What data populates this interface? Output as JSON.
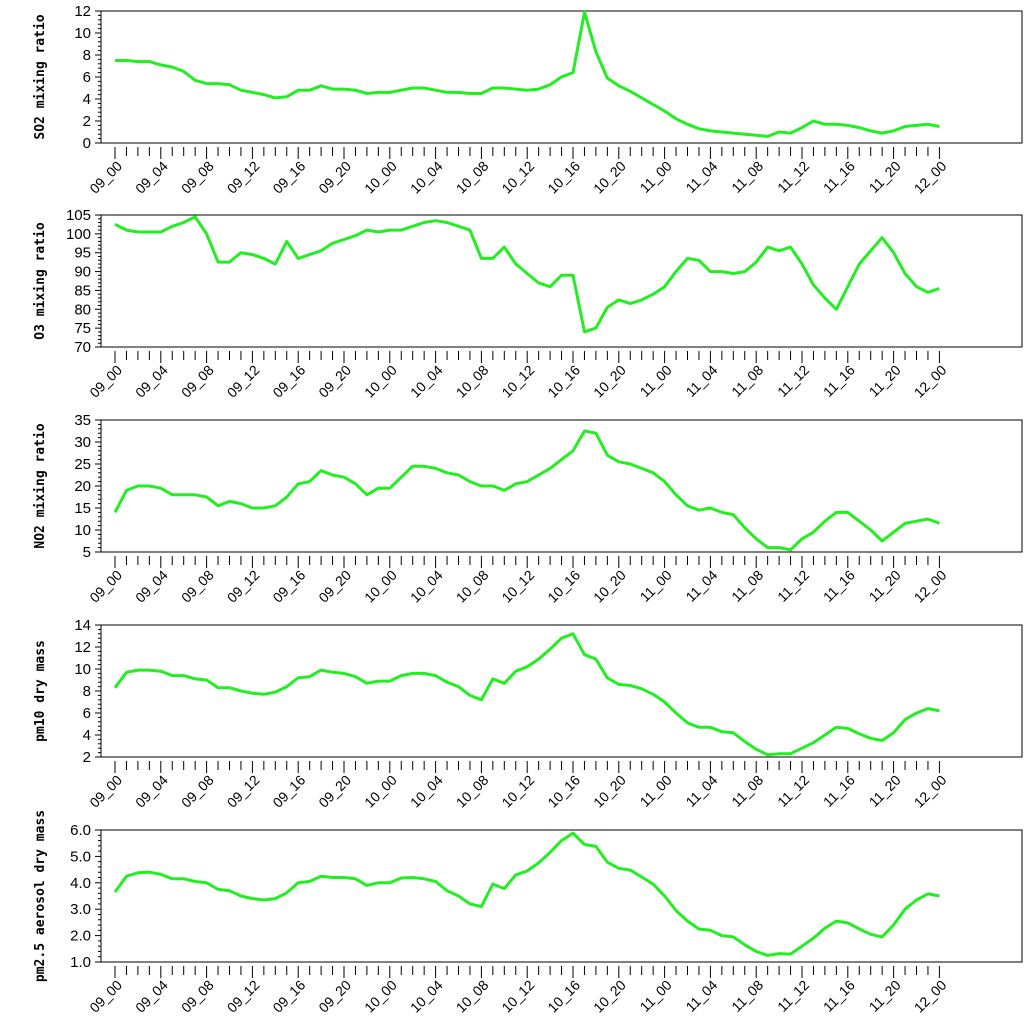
{
  "chart_data": [
    {
      "type": "line",
      "ylabel": "SO2 mixing ratio",
      "ylim": [
        0,
        12
      ],
      "yticks": [
        "0",
        "2",
        "4",
        "6",
        "8",
        "10",
        "12"
      ],
      "xticks": [
        "09_00",
        "09_04",
        "09_08",
        "09_12",
        "09_16",
        "09_20",
        "10_00",
        "10_04",
        "10_08",
        "10_12",
        "10_16",
        "10_20",
        "11_00",
        "11_04",
        "11_08",
        "11_12",
        "11_16",
        "11_20",
        "12_00"
      ],
      "series": [
        {
          "color": "#22ee22",
          "values": [
            7.5,
            7.5,
            7.4,
            7.4,
            7.1,
            6.9,
            6.5,
            5.7,
            5.4,
            5.4,
            5.3,
            4.8,
            4.6,
            4.4,
            4.1,
            4.2,
            4.8,
            4.8,
            5.2,
            4.9,
            4.9,
            4.8,
            4.5,
            4.6,
            4.6,
            4.8,
            5.0,
            5.0,
            4.8,
            4.6,
            4.6,
            4.5,
            4.5,
            5.0,
            5.0,
            4.9,
            4.8,
            4.9,
            5.3,
            6.0,
            6.4,
            11.9,
            8.3,
            5.9,
            5.2,
            4.7,
            4.1,
            3.5,
            2.9,
            2.2,
            1.7,
            1.3,
            1.1,
            1.0,
            0.9,
            0.8,
            0.7,
            0.6,
            1.0,
            0.9,
            1.4,
            2.0,
            1.7,
            1.7,
            1.6,
            1.4,
            1.1,
            0.9,
            1.1,
            1.5,
            1.6,
            1.7,
            1.5
          ]
        }
      ]
    },
    {
      "type": "line",
      "ylabel": "O3 mixing ratio",
      "ylim": [
        70,
        105
      ],
      "yticks": [
        "70",
        "75",
        "80",
        "85",
        "90",
        "95",
        "100",
        "105"
      ],
      "xticks": [
        "09_00",
        "09_04",
        "09_08",
        "09_12",
        "09_16",
        "09_20",
        "10_00",
        "10_04",
        "10_08",
        "10_12",
        "10_16",
        "10_20",
        "11_00",
        "11_04",
        "11_08",
        "11_12",
        "11_16",
        "11_20",
        "12_00"
      ],
      "series": [
        {
          "color": "#22ee22",
          "values": [
            102.5,
            101.0,
            100.5,
            100.5,
            100.5,
            102.0,
            103.0,
            104.5,
            100.0,
            92.5,
            92.5,
            95.0,
            94.5,
            93.5,
            92.0,
            98.0,
            93.5,
            94.5,
            95.5,
            97.5,
            98.5,
            99.5,
            101.0,
            100.5,
            101.0,
            101.0,
            102.0,
            103.0,
            103.5,
            103.0,
            102.0,
            101.0,
            93.5,
            93.5,
            96.5,
            92.0,
            89.5,
            87.0,
            86.0,
            89.0,
            89.0,
            74.0,
            75.0,
            80.5,
            82.5,
            81.5,
            82.5,
            84.0,
            86.0,
            90.0,
            93.5,
            93.0,
            90.0,
            90.0,
            89.5,
            90.0,
            92.5,
            96.5,
            95.5,
            96.5,
            92.0,
            86.5,
            83.0,
            80.0,
            86.0,
            92.0,
            95.5,
            99.0,
            95.0,
            89.5,
            86.0,
            84.5,
            85.5
          ]
        }
      ]
    },
    {
      "type": "line",
      "ylabel": "NO2 mixing ratio",
      "ylim": [
        5,
        35
      ],
      "yticks": [
        "5",
        "10",
        "15",
        "20",
        "25",
        "30",
        "35"
      ],
      "xticks": [
        "09_00",
        "09_04",
        "09_08",
        "09_12",
        "09_16",
        "09_20",
        "10_00",
        "10_04",
        "10_08",
        "10_12",
        "10_16",
        "10_20",
        "11_00",
        "11_04",
        "11_08",
        "11_12",
        "11_16",
        "11_20",
        "12_00"
      ],
      "series": [
        {
          "color": "#22ee22",
          "values": [
            14.0,
            19.0,
            20.0,
            20.0,
            19.5,
            18.0,
            18.0,
            18.0,
            17.5,
            15.5,
            16.5,
            16.0,
            15.0,
            15.0,
            15.5,
            17.5,
            20.5,
            21.0,
            23.5,
            22.5,
            22.0,
            20.5,
            18.0,
            19.5,
            19.5,
            22.0,
            24.5,
            24.5,
            24.0,
            23.0,
            22.5,
            21.0,
            20.0,
            20.0,
            19.0,
            20.5,
            21.0,
            22.5,
            24.0,
            26.0,
            28.0,
            32.5,
            32.0,
            27.0,
            25.5,
            25.0,
            24.0,
            23.0,
            21.0,
            18.0,
            15.5,
            14.5,
            15.0,
            14.0,
            13.5,
            10.5,
            8.0,
            6.0,
            6.0,
            5.5,
            8.0,
            9.5,
            12.0,
            14.0,
            14.0,
            12.0,
            10.0,
            7.5,
            9.5,
            11.5,
            12.0,
            12.5,
            11.5
          ]
        }
      ]
    },
    {
      "type": "line",
      "ylabel": "pm10 dry mass",
      "ylim": [
        2,
        14
      ],
      "yticks": [
        "2",
        "4",
        "6",
        "8",
        "10",
        "12",
        "14"
      ],
      "xticks": [
        "09_00",
        "09_04",
        "09_08",
        "09_12",
        "09_16",
        "09_20",
        "10_00",
        "10_04",
        "10_08",
        "10_12",
        "10_16",
        "10_20",
        "11_00",
        "11_04",
        "11_08",
        "11_12",
        "11_16",
        "11_20",
        "12_00"
      ],
      "series": [
        {
          "color": "#22ee22",
          "values": [
            8.3,
            9.7,
            9.9,
            9.9,
            9.8,
            9.4,
            9.4,
            9.1,
            9.0,
            8.3,
            8.3,
            8.0,
            7.8,
            7.7,
            7.9,
            8.4,
            9.2,
            9.3,
            9.9,
            9.7,
            9.6,
            9.3,
            8.7,
            8.9,
            8.9,
            9.4,
            9.6,
            9.6,
            9.4,
            8.8,
            8.4,
            7.6,
            7.2,
            9.1,
            8.7,
            9.8,
            10.2,
            10.9,
            11.8,
            12.8,
            13.2,
            11.3,
            10.9,
            9.2,
            8.6,
            8.5,
            8.2,
            7.7,
            7.0,
            6.0,
            5.1,
            4.7,
            4.7,
            4.3,
            4.2,
            3.4,
            2.7,
            2.2,
            2.3,
            2.3,
            2.8,
            3.3,
            4.0,
            4.7,
            4.6,
            4.1,
            3.7,
            3.5,
            4.2,
            5.4,
            6.0,
            6.4,
            6.2
          ]
        }
      ]
    },
    {
      "type": "line",
      "ylabel": "pm2.5 aerosol dry mass",
      "ylim": [
        1.0,
        6.0
      ],
      "yticks": [
        "1.0",
        "2.0",
        "3.0",
        "4.0",
        "5.0",
        "6.0"
      ],
      "xticks": [
        "09_00",
        "09_04",
        "09_08",
        "09_12",
        "09_16",
        "09_20",
        "10_00",
        "10_04",
        "10_08",
        "10_12",
        "10_16",
        "10_20",
        "11_00",
        "11_04",
        "11_08",
        "11_12",
        "11_16",
        "11_20",
        "12_00"
      ],
      "series": [
        {
          "color": "#22ee22",
          "values": [
            3.65,
            4.25,
            4.38,
            4.4,
            4.32,
            4.15,
            4.15,
            4.05,
            4.0,
            3.75,
            3.7,
            3.5,
            3.4,
            3.35,
            3.4,
            3.62,
            4.0,
            4.05,
            4.25,
            4.2,
            4.2,
            4.15,
            3.9,
            4.0,
            4.0,
            4.18,
            4.2,
            4.15,
            4.05,
            3.7,
            3.5,
            3.2,
            3.1,
            3.95,
            3.78,
            4.3,
            4.45,
            4.75,
            5.15,
            5.6,
            5.88,
            5.45,
            5.38,
            4.78,
            4.55,
            4.48,
            4.22,
            3.95,
            3.5,
            2.95,
            2.55,
            2.25,
            2.2,
            2.0,
            1.95,
            1.65,
            1.4,
            1.25,
            1.32,
            1.3,
            1.6,
            1.9,
            2.28,
            2.55,
            2.48,
            2.25,
            2.05,
            1.95,
            2.4,
            3.0,
            3.35,
            3.58,
            3.5
          ]
        }
      ]
    }
  ]
}
